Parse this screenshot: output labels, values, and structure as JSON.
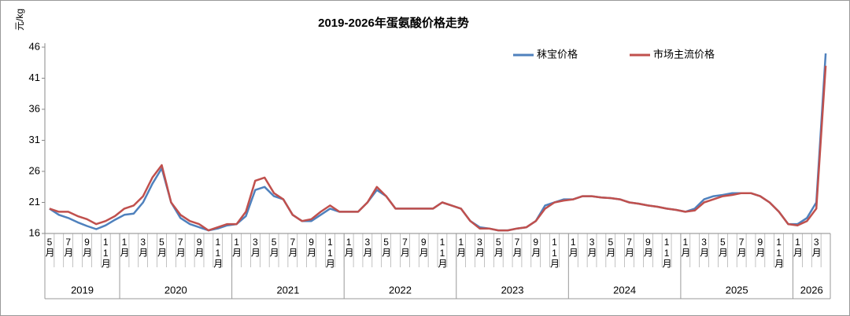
{
  "chart_data": {
    "type": "line",
    "title": "2019-2026年蛋氨酸价格走势",
    "y_label": "元/kg",
    "ylim": [
      16,
      46
    ],
    "yticks": [
      16,
      21,
      26,
      31,
      36,
      41,
      46
    ],
    "legend": "top-right",
    "groups": [
      {
        "label": "2019",
        "categories": [
          "5月",
          null,
          "7月",
          null,
          "9月",
          null,
          "11月",
          null
        ]
      },
      {
        "label": "2020",
        "categories": [
          "1月",
          null,
          "3月",
          null,
          "5月",
          null,
          "7月",
          null,
          "9月",
          null,
          "11月",
          null
        ]
      },
      {
        "label": "2021",
        "categories": [
          "1月",
          null,
          "3月",
          null,
          "5月",
          null,
          "7月",
          null,
          "9月",
          null,
          "11月",
          null
        ]
      },
      {
        "label": "2022",
        "categories": [
          "1月",
          null,
          "3月",
          null,
          "5月",
          null,
          "7月",
          null,
          "9月",
          null,
          "11月",
          null
        ]
      },
      {
        "label": "2023",
        "categories": [
          "1月",
          null,
          "3月",
          null,
          "5月",
          null,
          "7月",
          null,
          "9月",
          null,
          "11月",
          null
        ]
      },
      {
        "label": "2024",
        "categories": [
          "1月",
          null,
          "3月",
          null,
          "5月",
          null,
          "7月",
          null,
          "9月",
          null,
          "11月",
          null
        ]
      },
      {
        "label": "2025",
        "categories": [
          "1月",
          null,
          "3月",
          null,
          "5月",
          null,
          "7月",
          null,
          "9月",
          null,
          "11月",
          null
        ]
      },
      {
        "label": "2026",
        "categories": [
          "1月",
          null,
          "3月",
          null
        ]
      }
    ],
    "series": [
      {
        "name": "秣宝价格",
        "color": "#4f81bd",
        "values": [
          20,
          19,
          18.5,
          17.8,
          17.2,
          16.7,
          17.3,
          18.2,
          19,
          19.2,
          21,
          24,
          26.5,
          21,
          18.5,
          17.5,
          17,
          16.5,
          16.8,
          17.3,
          17.5,
          18.8,
          23,
          23.5,
          22,
          21.5,
          19,
          18,
          18,
          19,
          20,
          19.5,
          19.5,
          19.5,
          21,
          23,
          22,
          20,
          20,
          20,
          20,
          20,
          21,
          20.5,
          20,
          18,
          17,
          16.8,
          16.5,
          16.5,
          16.8,
          17,
          18,
          20.5,
          21,
          21.5,
          21.5,
          22,
          22,
          21.8,
          21.7,
          21.5,
          21,
          20.8,
          20.5,
          20.3,
          20,
          19.8,
          19.5,
          20,
          21.5,
          22,
          22.2,
          22.5,
          22.5,
          22.5,
          22,
          21,
          19.5,
          17.5,
          17.5,
          18.5,
          21,
          45
        ]
      },
      {
        "name": "市场主流价格",
        "color": "#c0504d",
        "values": [
          20,
          19.5,
          19.5,
          18.8,
          18.3,
          17.5,
          18,
          18.8,
          20,
          20.5,
          22,
          25,
          27,
          21,
          19,
          18,
          17.5,
          16.5,
          17,
          17.5,
          17.5,
          19.5,
          24.5,
          25,
          22.5,
          21.5,
          19,
          18,
          18.3,
          19.5,
          20.5,
          19.5,
          19.5,
          19.5,
          21,
          23.5,
          22,
          20,
          20,
          20,
          20,
          20,
          21,
          20.5,
          20,
          18,
          16.8,
          16.8,
          16.5,
          16.5,
          16.8,
          17,
          18,
          20,
          21,
          21.3,
          21.5,
          22,
          22,
          21.8,
          21.7,
          21.5,
          21,
          20.8,
          20.5,
          20.3,
          20,
          19.8,
          19.5,
          19.7,
          21,
          21.5,
          22,
          22.2,
          22.5,
          22.5,
          22,
          21,
          19.5,
          17.5,
          17.3,
          18,
          20,
          43
        ]
      }
    ]
  }
}
